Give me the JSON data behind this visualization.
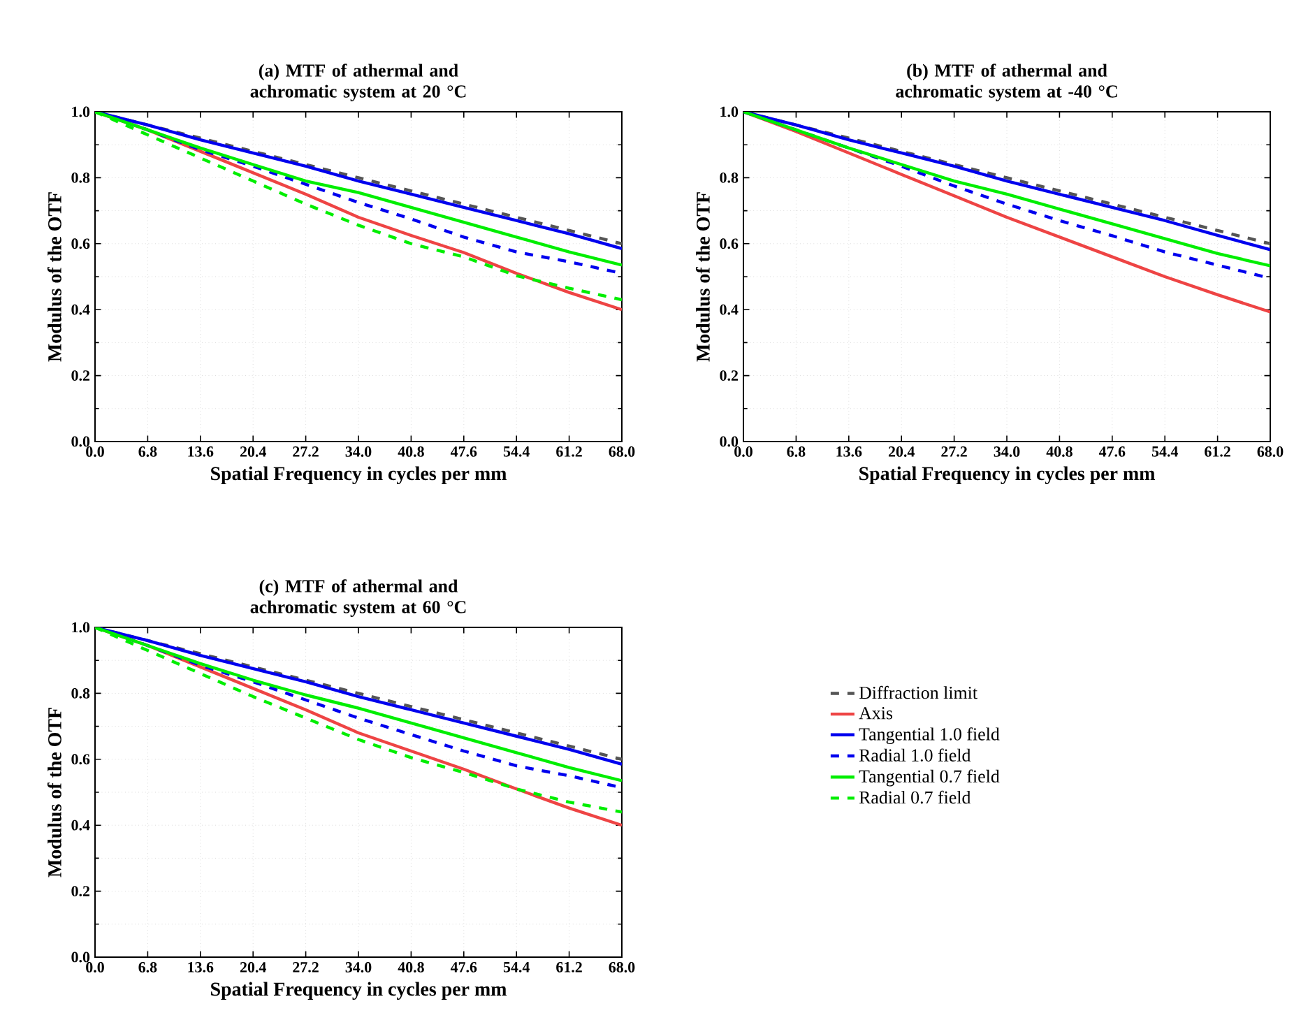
{
  "chart_data": [
    {
      "type": "line",
      "title": "(a) MTF of athermal and achromatic system at 20 °C",
      "xlabel": "Spatial Frequency in cycles per mm",
      "ylabel": "Modulus of the OTF",
      "x": [
        0,
        6.8,
        13.6,
        20.4,
        27.2,
        34,
        40.8,
        47.6,
        54.4,
        61.2,
        68
      ],
      "xlim": [
        0,
        68
      ],
      "ylim": [
        0,
        1
      ],
      "xticks": [
        {
          "value": 0,
          "label": "0.0"
        },
        {
          "value": 6.8,
          "label": "6.8"
        },
        {
          "value": 13.6,
          "label": "13.6"
        },
        {
          "value": 20.4,
          "label": "20.4"
        },
        {
          "value": 27.2,
          "label": "27.2"
        },
        {
          "value": 34,
          "label": "34.0"
        },
        {
          "value": 40.8,
          "label": "40.8"
        },
        {
          "value": 47.6,
          "label": "47.6"
        },
        {
          "value": 54.4,
          "label": "54.4"
        },
        {
          "value": 61.2,
          "label": "61.2"
        },
        {
          "value": 68,
          "label": "68.0"
        }
      ],
      "yticks": [
        {
          "value": 0,
          "label": "0.0"
        },
        {
          "value": 0.2,
          "label": "0.2"
        },
        {
          "value": 0.4,
          "label": "0.4"
        },
        {
          "value": 0.6,
          "label": "0.6"
        },
        {
          "value": 0.8,
          "label": "0.8"
        },
        {
          "value": 1,
          "label": "1.0"
        }
      ],
      "grid": true,
      "series": [
        {
          "color": "#555555",
          "line_style": "dashed",
          "values": [
            1.0,
            0.96,
            0.92,
            0.88,
            0.84,
            0.8,
            0.76,
            0.72,
            0.68,
            0.64,
            0.6
          ]
        },
        {
          "color": "#ee4444",
          "line_style": "solid",
          "values": [
            1.0,
            0.945,
            0.88,
            0.815,
            0.75,
            0.68,
            0.625,
            0.573,
            0.51,
            0.452,
            0.4
          ]
        },
        {
          "color": "#0000ee",
          "line_style": "solid",
          "values": [
            1.0,
            0.96,
            0.915,
            0.875,
            0.835,
            0.79,
            0.75,
            0.71,
            0.67,
            0.63,
            0.585
          ]
        },
        {
          "color": "#0000ee",
          "line_style": "dashed",
          "values": [
            1.0,
            0.945,
            0.885,
            0.835,
            0.78,
            0.725,
            0.675,
            0.62,
            0.575,
            0.545,
            0.51
          ]
        },
        {
          "color": "#00ee00",
          "line_style": "solid",
          "values": [
            1.0,
            0.945,
            0.89,
            0.84,
            0.79,
            0.755,
            0.71,
            0.665,
            0.62,
            0.575,
            0.535
          ]
        },
        {
          "color": "#00ee00",
          "line_style": "dashed",
          "values": [
            1.0,
            0.93,
            0.86,
            0.79,
            0.72,
            0.656,
            0.6,
            0.56,
            0.503,
            0.465,
            0.43
          ]
        }
      ]
    },
    {
      "type": "line",
      "title": "(b) MTF of athermal and achromatic system at -40 °C",
      "xlabel": "Spatial Frequency in cycles per mm",
      "ylabel": "Modulus of the OTF",
      "x": [
        0,
        6.8,
        13.6,
        20.4,
        27.2,
        34,
        40.8,
        47.6,
        54.4,
        61.2,
        68
      ],
      "xlim": [
        0,
        68
      ],
      "ylim": [
        0,
        1
      ],
      "xticks": [
        {
          "value": 0,
          "label": "0.0"
        },
        {
          "value": 6.8,
          "label": "6.8"
        },
        {
          "value": 13.6,
          "label": "13.6"
        },
        {
          "value": 20.4,
          "label": "20.4"
        },
        {
          "value": 27.2,
          "label": "27.2"
        },
        {
          "value": 34,
          "label": "34.0"
        },
        {
          "value": 40.8,
          "label": "40.8"
        },
        {
          "value": 47.6,
          "label": "47.6"
        },
        {
          "value": 54.4,
          "label": "54.4"
        },
        {
          "value": 61.2,
          "label": "61.2"
        },
        {
          "value": 68,
          "label": "68.0"
        }
      ],
      "yticks": [
        {
          "value": 0,
          "label": "0.0"
        },
        {
          "value": 0.2,
          "label": "0.2"
        },
        {
          "value": 0.4,
          "label": "0.4"
        },
        {
          "value": 0.6,
          "label": "0.6"
        },
        {
          "value": 0.8,
          "label": "0.8"
        },
        {
          "value": 1,
          "label": "1.0"
        }
      ],
      "grid": true,
      "series": [
        {
          "color": "#555555",
          "line_style": "dashed",
          "values": [
            1.0,
            0.96,
            0.92,
            0.88,
            0.84,
            0.8,
            0.76,
            0.72,
            0.68,
            0.64,
            0.6
          ]
        },
        {
          "color": "#ee4444",
          "line_style": "solid",
          "values": [
            1.0,
            0.94,
            0.875,
            0.81,
            0.745,
            0.68,
            0.62,
            0.56,
            0.5,
            0.445,
            0.393
          ]
        },
        {
          "color": "#0000ee",
          "line_style": "solid",
          "values": [
            1.0,
            0.96,
            0.915,
            0.875,
            0.835,
            0.79,
            0.75,
            0.71,
            0.67,
            0.625,
            0.582
          ]
        },
        {
          "color": "#0000ee",
          "line_style": "dashed",
          "values": [
            1.0,
            0.945,
            0.89,
            0.835,
            0.775,
            0.72,
            0.67,
            0.624,
            0.575,
            0.535,
            0.495
          ]
        },
        {
          "color": "#00ee00",
          "line_style": "solid",
          "values": [
            1.0,
            0.945,
            0.89,
            0.84,
            0.79,
            0.75,
            0.705,
            0.66,
            0.615,
            0.57,
            0.533
          ]
        }
      ]
    },
    {
      "type": "line",
      "title": "(c) MTF of athermal and achromatic system at 60 °C",
      "xlabel": "Spatial Frequency in cycles per mm",
      "ylabel": "Modulus of the OTF",
      "x": [
        0,
        6.8,
        13.6,
        20.4,
        27.2,
        34,
        40.8,
        47.6,
        54.4,
        61.2,
        68
      ],
      "xlim": [
        0,
        68
      ],
      "ylim": [
        0,
        1
      ],
      "xticks": [
        {
          "value": 0,
          "label": "0.0"
        },
        {
          "value": 6.8,
          "label": "6.8"
        },
        {
          "value": 13.6,
          "label": "13.6"
        },
        {
          "value": 20.4,
          "label": "20.4"
        },
        {
          "value": 27.2,
          "label": "27.2"
        },
        {
          "value": 34,
          "label": "34.0"
        },
        {
          "value": 40.8,
          "label": "40.8"
        },
        {
          "value": 47.6,
          "label": "47.6"
        },
        {
          "value": 54.4,
          "label": "54.4"
        },
        {
          "value": 61.2,
          "label": "61.2"
        },
        {
          "value": 68,
          "label": "68.0"
        }
      ],
      "yticks": [
        {
          "value": 0,
          "label": "0.0"
        },
        {
          "value": 0.2,
          "label": "0.2"
        },
        {
          "value": 0.4,
          "label": "0.4"
        },
        {
          "value": 0.6,
          "label": "0.6"
        },
        {
          "value": 0.8,
          "label": "0.8"
        },
        {
          "value": 1,
          "label": "1.0"
        }
      ],
      "grid": true,
      "legend": "right",
      "series": [
        {
          "name": "Diffraction limit",
          "color": "#555555",
          "line_style": "dashed",
          "values": [
            1.0,
            0.96,
            0.92,
            0.88,
            0.84,
            0.8,
            0.76,
            0.72,
            0.68,
            0.64,
            0.6
          ]
        },
        {
          "name": "Axis",
          "color": "#ee4444",
          "line_style": "solid",
          "values": [
            1.0,
            0.945,
            0.88,
            0.815,
            0.75,
            0.68,
            0.625,
            0.57,
            0.51,
            0.452,
            0.4
          ]
        },
        {
          "name": "Tangential 1.0 field",
          "color": "#0000ee",
          "line_style": "solid",
          "values": [
            1.0,
            0.96,
            0.915,
            0.875,
            0.835,
            0.79,
            0.75,
            0.71,
            0.67,
            0.63,
            0.585
          ]
        },
        {
          "name": "Radial 1.0 field",
          "color": "#0000ee",
          "line_style": "dashed",
          "values": [
            1.0,
            0.945,
            0.885,
            0.835,
            0.78,
            0.725,
            0.675,
            0.625,
            0.58,
            0.55,
            0.514
          ]
        },
        {
          "name": "Tangential 0.7 field",
          "color": "#00ee00",
          "line_style": "solid",
          "values": [
            1.0,
            0.945,
            0.89,
            0.84,
            0.795,
            0.755,
            0.71,
            0.665,
            0.62,
            0.575,
            0.535
          ]
        },
        {
          "name": "Radial 0.7 field",
          "color": "#00ee00",
          "line_style": "dashed",
          "values": [
            1.0,
            0.93,
            0.86,
            0.79,
            0.725,
            0.66,
            0.605,
            0.56,
            0.51,
            0.47,
            0.44
          ]
        }
      ]
    }
  ]
}
